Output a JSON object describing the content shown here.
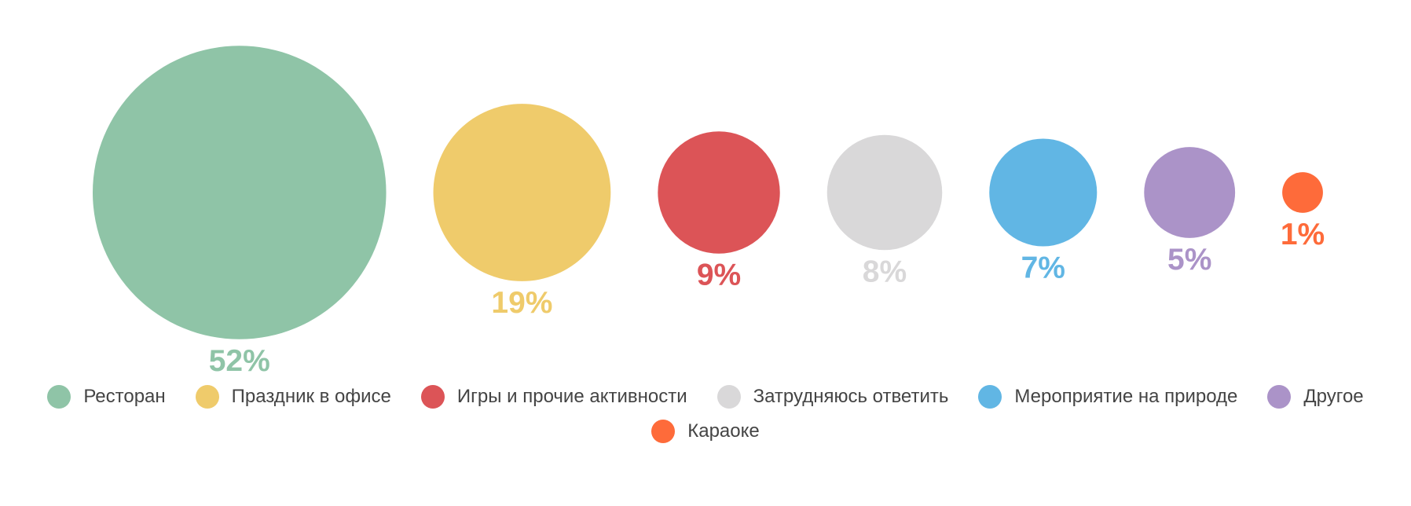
{
  "chart_data": {
    "type": "bubble",
    "categories": [
      "Ресторан",
      "Праздник в офисе",
      "Игры и прочие активности",
      "Затрудняюсь ответить",
      "Мероприятие на природе",
      "Другое",
      "Караоке"
    ],
    "values": [
      52,
      19,
      9,
      8,
      7,
      5,
      1
    ],
    "value_labels": [
      "52%",
      "19%",
      "9%",
      "8%",
      "7%",
      "5%",
      "1%"
    ],
    "colors": [
      "#8fc4a7",
      "#efcb6b",
      "#dc5457",
      "#d9d8d9",
      "#61b6e4",
      "#ab93c8",
      "#fe6b3a"
    ],
    "legend": "bottom"
  }
}
